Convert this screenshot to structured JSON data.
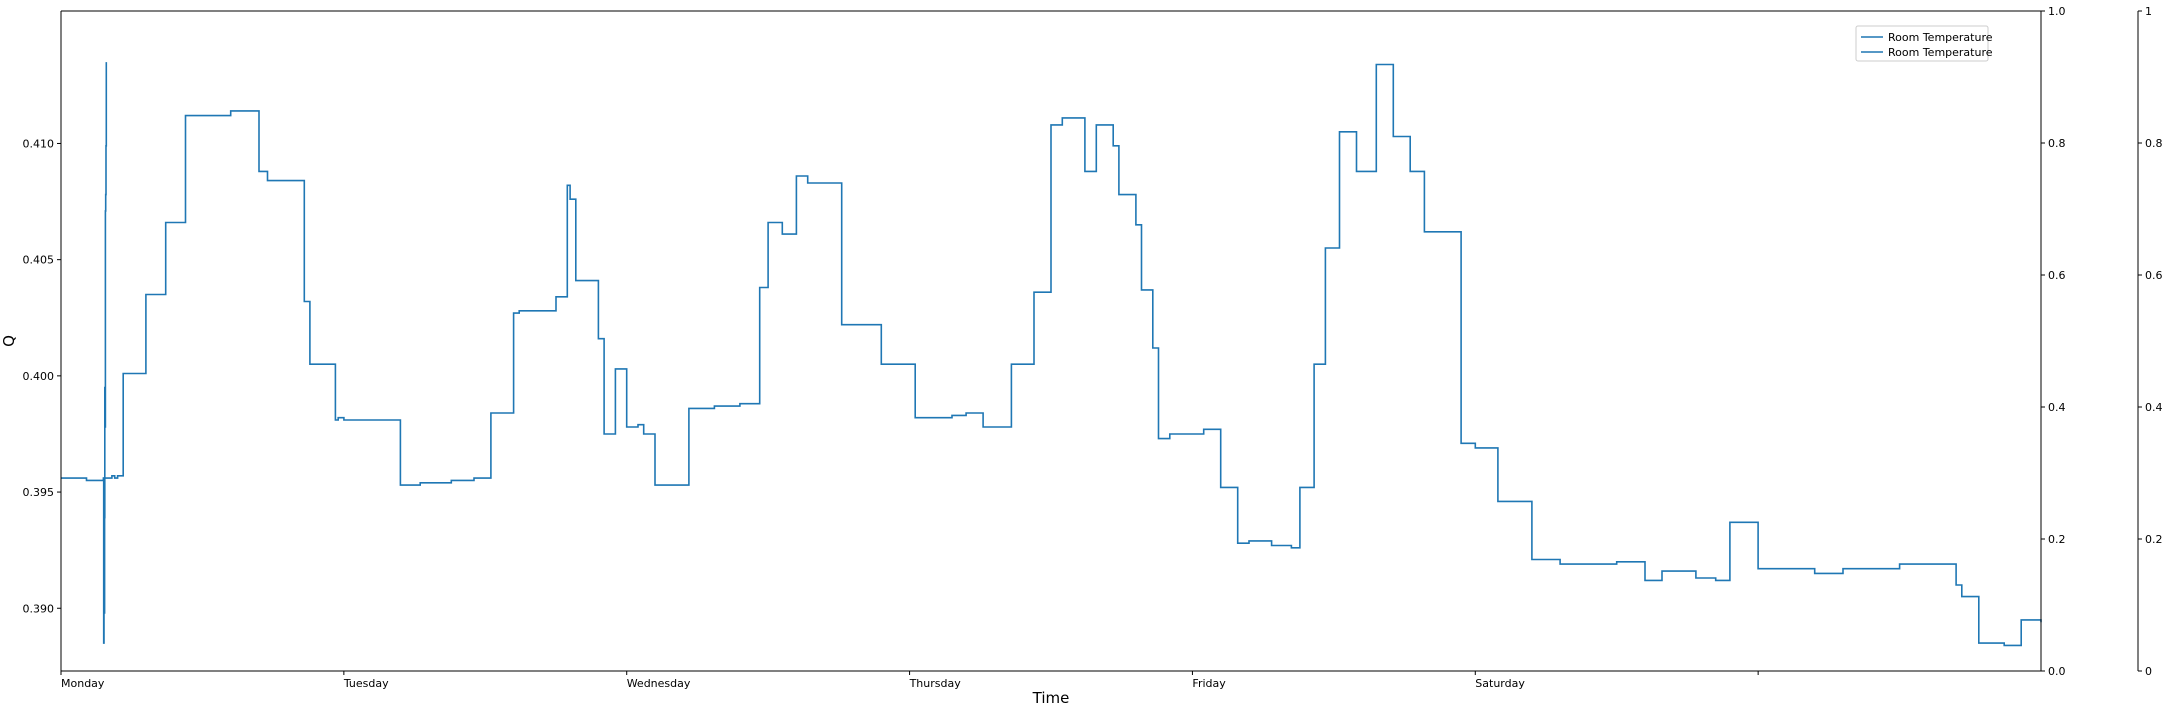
{
  "chart_data": {
    "type": "line",
    "title": "",
    "xlabel": "Time",
    "ylabel": "Q",
    "x_ticks": [
      "Monday",
      "Tuesday",
      "Wednesday",
      "Thursday",
      "Friday",
      "Saturday",
      ""
    ],
    "xlim": [
      0,
      7
    ],
    "ylim": [
      0.3873,
      0.4157
    ],
    "y_ticks": [
      0.39,
      0.395,
      0.4,
      0.405,
      0.41
    ],
    "y_tick_labels": [
      "0.390",
      "0.395",
      "0.400",
      "0.405",
      "0.410"
    ],
    "right_axis_1": {
      "ylim": [
        0,
        1
      ],
      "ticks": [
        "0.0",
        "0.2",
        "0.4",
        "0.6",
        "0.8",
        "1.0"
      ]
    },
    "right_axis_2": {
      "ylim": [
        0,
        1
      ],
      "ticks": [
        "0",
        "0.2",
        "0.4",
        "0.6",
        "0.8",
        "1"
      ]
    },
    "legend": {
      "placement": "top-right",
      "entries": [
        "Room Temperature",
        "Room Temperature"
      ]
    },
    "grid": false,
    "series": [
      {
        "name": "Room Temperature",
        "color": "#1f77b4",
        "x": [
          0,
          0.09,
          0.15,
          0.18,
          0.19,
          0.2,
          0.22,
          0.3,
          0.37,
          0.44,
          0.6,
          0.7,
          0.73,
          0.86,
          0.88,
          0.97,
          0.98,
          1.0,
          1.2,
          1.27,
          1.38,
          1.46,
          1.52,
          1.6,
          1.62,
          1.75,
          1.79,
          1.8,
          1.82,
          1.9,
          1.92,
          1.96,
          2.0,
          2.04,
          2.06,
          2.1,
          2.22,
          2.31,
          2.4,
          2.47,
          2.5,
          2.55,
          2.6,
          2.64,
          2.76,
          2.9,
          3.02,
          3.1,
          3.15,
          3.2,
          3.26,
          3.36,
          3.44,
          3.5,
          3.54,
          3.62,
          3.66,
          3.72,
          3.74,
          3.8,
          3.82,
          3.86,
          3.88,
          3.92,
          4.04,
          4.1,
          4.16,
          4.2,
          4.28,
          4.35,
          4.38,
          4.43,
          4.47,
          4.52,
          4.58,
          4.65,
          4.71,
          4.77,
          4.82,
          4.95,
          5.0,
          5.08,
          5.2,
          5.3,
          5.5,
          5.6,
          5.66,
          5.78,
          5.85,
          5.9,
          6.0,
          6.2,
          6.3,
          6.5,
          6.62,
          6.7,
          6.72,
          6.78,
          6.87,
          6.93,
          7.0
        ],
        "values": [
          0.3956,
          0.3955,
          0.3956,
          0.3957,
          0.3956,
          0.3957,
          0.4001,
          0.4035,
          0.4066,
          0.4112,
          0.4114,
          0.4088,
          0.4084,
          0.4032,
          0.4005,
          0.3981,
          0.3982,
          0.3981,
          0.3953,
          0.3954,
          0.3955,
          0.3956,
          0.3984,
          0.4027,
          0.4028,
          0.4034,
          0.4082,
          0.4076,
          0.4041,
          0.4016,
          0.3975,
          0.4003,
          0.3978,
          0.3979,
          0.3975,
          0.3953,
          0.3986,
          0.3987,
          0.3988,
          0.4038,
          0.4066,
          0.4061,
          0.4086,
          0.4083,
          0.4022,
          0.4005,
          0.3982,
          0.3982,
          0.3983,
          0.3984,
          0.3978,
          0.4005,
          0.4036,
          0.4108,
          0.4111,
          0.4088,
          0.4108,
          0.4099,
          0.4078,
          0.4065,
          0.4037,
          0.4012,
          0.3973,
          0.3975,
          0.3977,
          0.3952,
          0.3928,
          0.3929,
          0.3927,
          0.3926,
          0.3952,
          0.4005,
          0.4055,
          0.4105,
          0.4088,
          0.4134,
          0.4103,
          0.4088,
          0.4062,
          0.3971,
          0.3969,
          0.3946,
          0.3921,
          0.3919,
          0.392,
          0.3912,
          0.3916,
          0.3913,
          0.3912,
          0.3937,
          0.3917,
          0.3915,
          0.3917,
          0.3919,
          0.3919,
          0.391,
          0.3905,
          0.3885,
          0.3884,
          0.3895,
          0.3894
        ]
      },
      {
        "name": "Room Temperature",
        "color": "#1f77b4",
        "x": [
          0.15,
          0.151,
          0.152,
          0.153,
          0.154,
          0.155,
          0.156,
          0.157,
          0.158,
          0.159,
          0.16
        ],
        "values": [
          0.3956,
          0.3885,
          0.3907,
          0.3898,
          0.3939,
          0.3995,
          0.3978,
          0.4071,
          0.4078,
          0.4099,
          0.4135
        ]
      }
    ]
  }
}
